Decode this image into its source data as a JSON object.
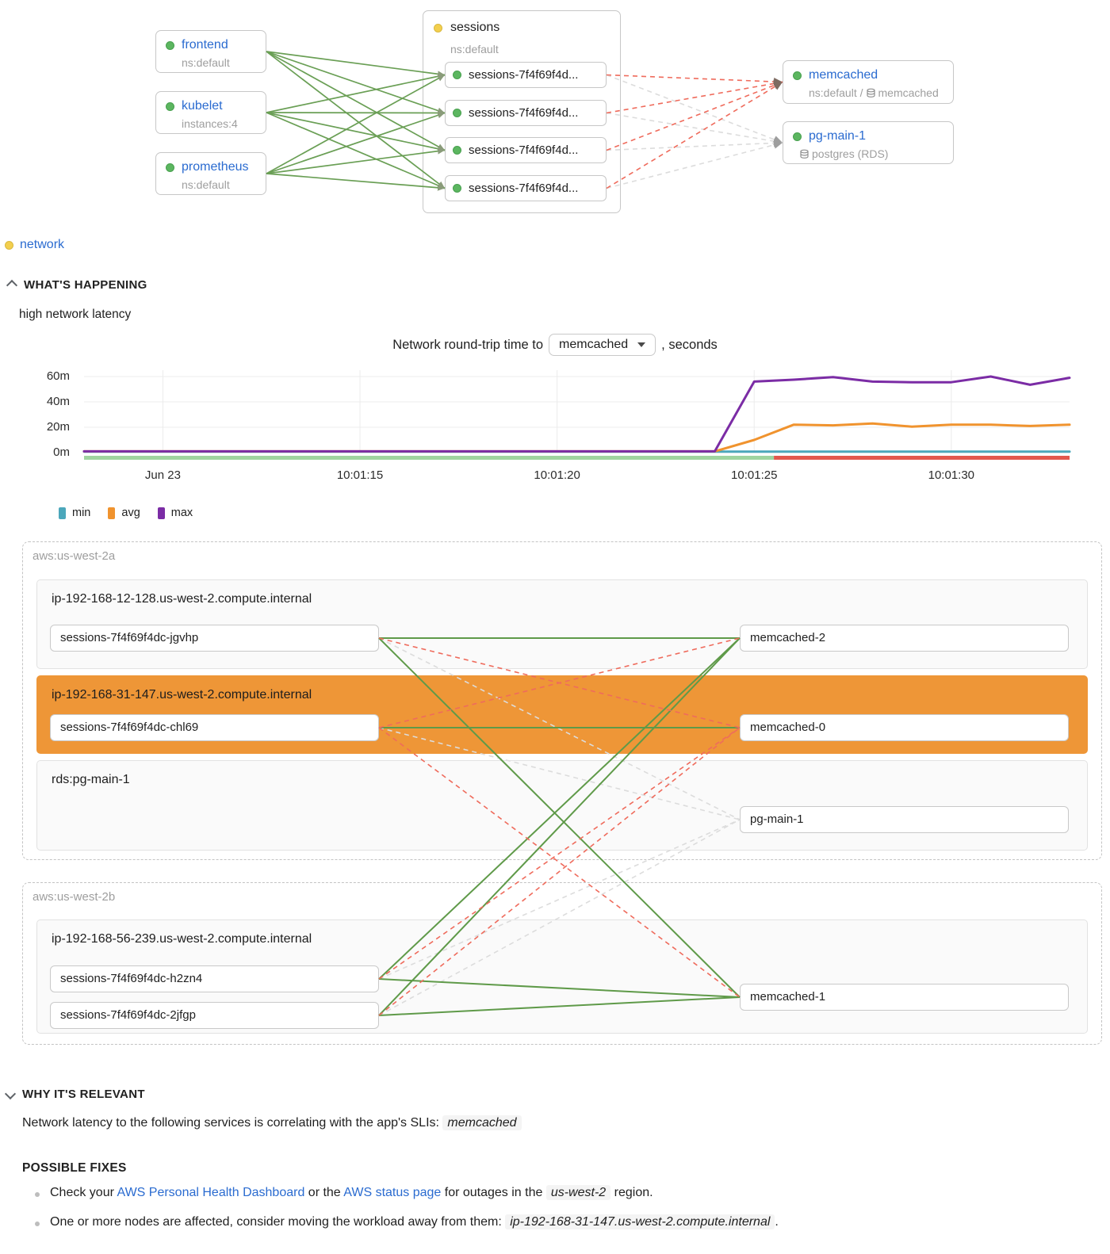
{
  "topology": {
    "left_nodes": [
      {
        "id": "frontend",
        "label": "frontend",
        "sub": "ns:default"
      },
      {
        "id": "kubelet",
        "label": "kubelet",
        "sub": "instances:4"
      },
      {
        "id": "prometheus",
        "label": "prometheus",
        "sub": "ns:default"
      }
    ],
    "group": {
      "title": "sessions",
      "sub": "ns:default",
      "pods": [
        {
          "id": "s1",
          "label": "sessions-7f4f69f4d..."
        },
        {
          "id": "s2",
          "label": "sessions-7f4f69f4d..."
        },
        {
          "id": "s3",
          "label": "sessions-7f4f69f4d..."
        },
        {
          "id": "s4",
          "label": "sessions-7f4f69f4d..."
        }
      ]
    },
    "right_nodes": [
      {
        "id": "mc",
        "label": "memcached",
        "sub_prefix": "ns:default / ",
        "sub_name": "memcached"
      },
      {
        "id": "pg",
        "label": "pg-main-1",
        "sub_prefix": "",
        "sub_name": "postgres (RDS)"
      }
    ],
    "edges": [
      {
        "from": "frontend",
        "to": "s1",
        "type": "green",
        "arrow": true
      },
      {
        "from": "frontend",
        "to": "s2",
        "type": "green",
        "arrow": true
      },
      {
        "from": "frontend",
        "to": "s3",
        "type": "green",
        "arrow": true
      },
      {
        "from": "frontend",
        "to": "s4",
        "type": "green",
        "arrow": true
      },
      {
        "from": "kubelet",
        "to": "s1",
        "type": "green",
        "arrow": true
      },
      {
        "from": "kubelet",
        "to": "s2",
        "type": "green",
        "arrow": true
      },
      {
        "from": "kubelet",
        "to": "s3",
        "type": "green",
        "arrow": true
      },
      {
        "from": "kubelet",
        "to": "s4",
        "type": "green",
        "arrow": true
      },
      {
        "from": "prometheus",
        "to": "s1",
        "type": "green",
        "arrow": true
      },
      {
        "from": "prometheus",
        "to": "s2",
        "type": "green",
        "arrow": true
      },
      {
        "from": "prometheus",
        "to": "s3",
        "type": "green",
        "arrow": true
      },
      {
        "from": "prometheus",
        "to": "s4",
        "type": "green",
        "arrow": true
      },
      {
        "from": "s1",
        "to": "mc",
        "type": "red",
        "arrow": true
      },
      {
        "from": "s2",
        "to": "mc",
        "type": "red",
        "arrow": true
      },
      {
        "from": "s3",
        "to": "mc",
        "type": "red",
        "arrow": true
      },
      {
        "from": "s4",
        "to": "mc",
        "type": "red",
        "arrow": true
      },
      {
        "from": "s1",
        "to": "pg",
        "type": "gray",
        "arrow": true
      },
      {
        "from": "s2",
        "to": "pg",
        "type": "gray",
        "arrow": true
      },
      {
        "from": "s3",
        "to": "pg",
        "type": "gray",
        "arrow": true
      },
      {
        "from": "s4",
        "to": "pg",
        "type": "gray",
        "arrow": true
      }
    ]
  },
  "incident": {
    "link": "network"
  },
  "sections": {
    "whats_happening": "WHAT'S HAPPENING",
    "why": "WHY IT'S RELEVANT",
    "fixes": "POSSIBLE FIXES"
  },
  "summary": "high network latency",
  "chart_data": {
    "type": "line",
    "title": "Network round-trip time to memcached, seconds",
    "selector": {
      "prefix": "Network round-trip time to",
      "value": "memcached",
      "suffix": ", seconds"
    },
    "x_ticks": [
      {
        "t": 2,
        "label": "Jun 23"
      },
      {
        "t": 7,
        "label": "10:01:15"
      },
      {
        "t": 12,
        "label": "10:01:20"
      },
      {
        "t": 17,
        "label": "10:01:25"
      },
      {
        "t": 22,
        "label": "10:01:30"
      }
    ],
    "x_range": [
      0,
      25
    ],
    "y_ticks": [
      {
        "v": 0,
        "label": "0m"
      },
      {
        "v": 20,
        "label": "20m"
      },
      {
        "v": 40,
        "label": "40m"
      },
      {
        "v": 60,
        "label": "60m"
      }
    ],
    "ylim": [
      0,
      65
    ],
    "y_unit": "milliseconds",
    "grid": true,
    "legend_position": "bottom-left",
    "series": [
      {
        "name": "min",
        "color": "#4ba7bb",
        "values": [
          0.8,
          0.8,
          0.8,
          0.8,
          0.8,
          0.8,
          0.8,
          0.8,
          0.8,
          0.8,
          0.8,
          0.8,
          0.8,
          0.8,
          0.8,
          0.8,
          0.8,
          0.8,
          0.8,
          0.8,
          0.8,
          0.8,
          0.8,
          0.8,
          0.8,
          0.8
        ]
      },
      {
        "name": "avg",
        "color": "#f0932e",
        "values": [
          1,
          1,
          1,
          1,
          1,
          1,
          1,
          1,
          1,
          1,
          1,
          1,
          1,
          1,
          1,
          1,
          1,
          10,
          22,
          21.5,
          23,
          20.5,
          22,
          22,
          21,
          22
        ]
      },
      {
        "name": "max",
        "color": "#7b2ca5",
        "values": [
          1,
          1,
          1,
          1,
          1,
          1,
          1,
          1,
          1,
          1,
          1,
          1,
          1,
          1,
          1,
          1,
          1,
          56,
          57.5,
          59.5,
          56,
          55.5,
          55.5,
          60,
          53.5,
          59
        ]
      }
    ],
    "status_strip": [
      {
        "from": 0,
        "to": 0.7,
        "status": "ok",
        "color": "#9fd4a0"
      },
      {
        "from": 0.7,
        "to": 1,
        "status": "bad",
        "color": "#e2574e"
      }
    ]
  },
  "zones": [
    {
      "title": "aws:us-west-2a",
      "hosts": [
        {
          "label": "ip-192-168-12-128.us-west-2.compute.internal",
          "highlight": false,
          "pods": {
            "left": "sessions-7f4f69f4dc-jgvhp",
            "right": "memcached-2"
          }
        },
        {
          "label": "ip-192-168-31-147.us-west-2.compute.internal",
          "highlight": true,
          "pods": {
            "left": "sessions-7f4f69f4dc-chl69",
            "right": "memcached-0"
          }
        },
        {
          "label": "rds:pg-main-1",
          "highlight": false,
          "pods": {
            "right": "pg-main-1"
          }
        }
      ]
    },
    {
      "title": "aws:us-west-2b",
      "hosts": [
        {
          "label": "ip-192-168-56-239.us-west-2.compute.internal",
          "highlight": false,
          "pods": {
            "left": "sessions-7f4f69f4dc-h2zn4",
            "left2": "sessions-7f4f69f4dc-2jfgp",
            "right": "memcached-1"
          }
        }
      ]
    }
  ],
  "zone_edges": [
    {
      "from": "p-jgvhp",
      "to": "p-mc2",
      "type": "green"
    },
    {
      "from": "p-jgvhp",
      "to": "p-mc1",
      "type": "green"
    },
    {
      "from": "p-chl69",
      "to": "p-mc0",
      "type": "green"
    },
    {
      "from": "p-h2zn4",
      "to": "p-mc2",
      "type": "green"
    },
    {
      "from": "p-h2zn4",
      "to": "p-mc1",
      "type": "green"
    },
    {
      "from": "p-2jfgp",
      "to": "p-mc2",
      "type": "green"
    },
    {
      "from": "p-2jfgp",
      "to": "p-mc1",
      "type": "green"
    },
    {
      "from": "p-jgvhp",
      "to": "p-mc0",
      "type": "red"
    },
    {
      "from": "p-chl69",
      "to": "p-mc2",
      "type": "red"
    },
    {
      "from": "p-chl69",
      "to": "p-mc1",
      "type": "red"
    },
    {
      "from": "p-h2zn4",
      "to": "p-mc0",
      "type": "red"
    },
    {
      "from": "p-2jfgp",
      "to": "p-mc0",
      "type": "red"
    },
    {
      "from": "p-jgvhp",
      "to": "p-pgm",
      "type": "gray"
    },
    {
      "from": "p-chl69",
      "to": "p-pgm",
      "type": "gray"
    },
    {
      "from": "p-h2zn4",
      "to": "p-pgm",
      "type": "gray"
    },
    {
      "from": "p-2jfgp",
      "to": "p-pgm",
      "type": "gray"
    }
  ],
  "why": {
    "text": "Network latency to the following services is correlating with the app's SLIs:",
    "chip": "memcached"
  },
  "fixes": {
    "items": [
      {
        "segments": [
          {
            "text": "Check your "
          },
          {
            "text": "AWS Personal Health Dashboard",
            "link": true
          },
          {
            "text": " or the "
          },
          {
            "text": "AWS status page",
            "link": true
          },
          {
            "text": " for outages in the "
          },
          {
            "text": "us-west-2",
            "chip": true
          },
          {
            "text": " region."
          }
        ]
      },
      {
        "segments": [
          {
            "text": "One or more nodes are affected, consider moving the workload away from them: "
          },
          {
            "text": "ip-192-168-31-147.us-west-2.compute.internal",
            "chip": true
          },
          {
            "text": "."
          }
        ]
      }
    ]
  },
  "colors": {
    "link_blue": "#2a6bd0",
    "edge_green": "#6a9f55",
    "edge_red": "#ef6b5c",
    "edge_gray": "#dcdcdc",
    "host_highlight_orange": "#ee9637",
    "status_ok_green": "#9fd4a0",
    "status_bad_red": "#e2574e"
  }
}
